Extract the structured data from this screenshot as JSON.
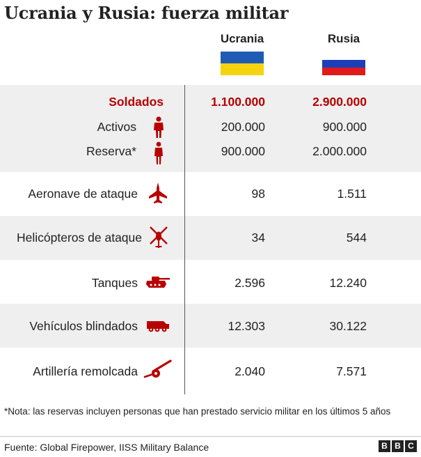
{
  "title": "Ucrania y Rusia: fuerza militar",
  "columns": [
    {
      "name": "Ucrania",
      "flag_colors": [
        "#1f5bb5",
        "#f5d30f"
      ]
    },
    {
      "name": "Rusia",
      "flag_colors": [
        "#ffffff",
        "#1a3fb8",
        "#e01b1b"
      ]
    }
  ],
  "colors": {
    "accent_red": "#b80000",
    "row_shade": "#efefef",
    "icon_red": "#b80000"
  },
  "rows": [
    {
      "label": "Soldados",
      "ukraine": "1.100.000",
      "russia": "2.900.000",
      "highlight": true
    },
    {
      "label": "Activos",
      "ukraine": "200.000",
      "russia": "900.000",
      "icon": "soldier-icon"
    },
    {
      "label": "Reserva*",
      "ukraine": "900.000",
      "russia": "2.000.000",
      "icon": "reservist-icon"
    },
    {
      "label": "Aeronave de ataque",
      "ukraine": "98",
      "russia": "1.511",
      "icon": "fighter-jet-icon"
    },
    {
      "label": "Helicópteros de ataque",
      "ukraine": "34",
      "russia": "544",
      "icon": "helicopter-icon"
    },
    {
      "label": "Tanques",
      "ukraine": "2.596",
      "russia": "12.240",
      "icon": "tank-icon"
    },
    {
      "label": "Vehículos blindados",
      "ukraine": "12.303",
      "russia": "30.122",
      "icon": "armored-vehicle-icon"
    },
    {
      "label": "Artillería remolcada",
      "ukraine": "2.040",
      "russia": "7.571",
      "icon": "artillery-icon"
    }
  ],
  "note": "*Nota: las reservas incluyen personas que han prestado servicio militar en los últimos 5 años",
  "source": "Fuente: Global Firepower, IISS Military Balance",
  "logo": [
    "B",
    "B",
    "C"
  ]
}
